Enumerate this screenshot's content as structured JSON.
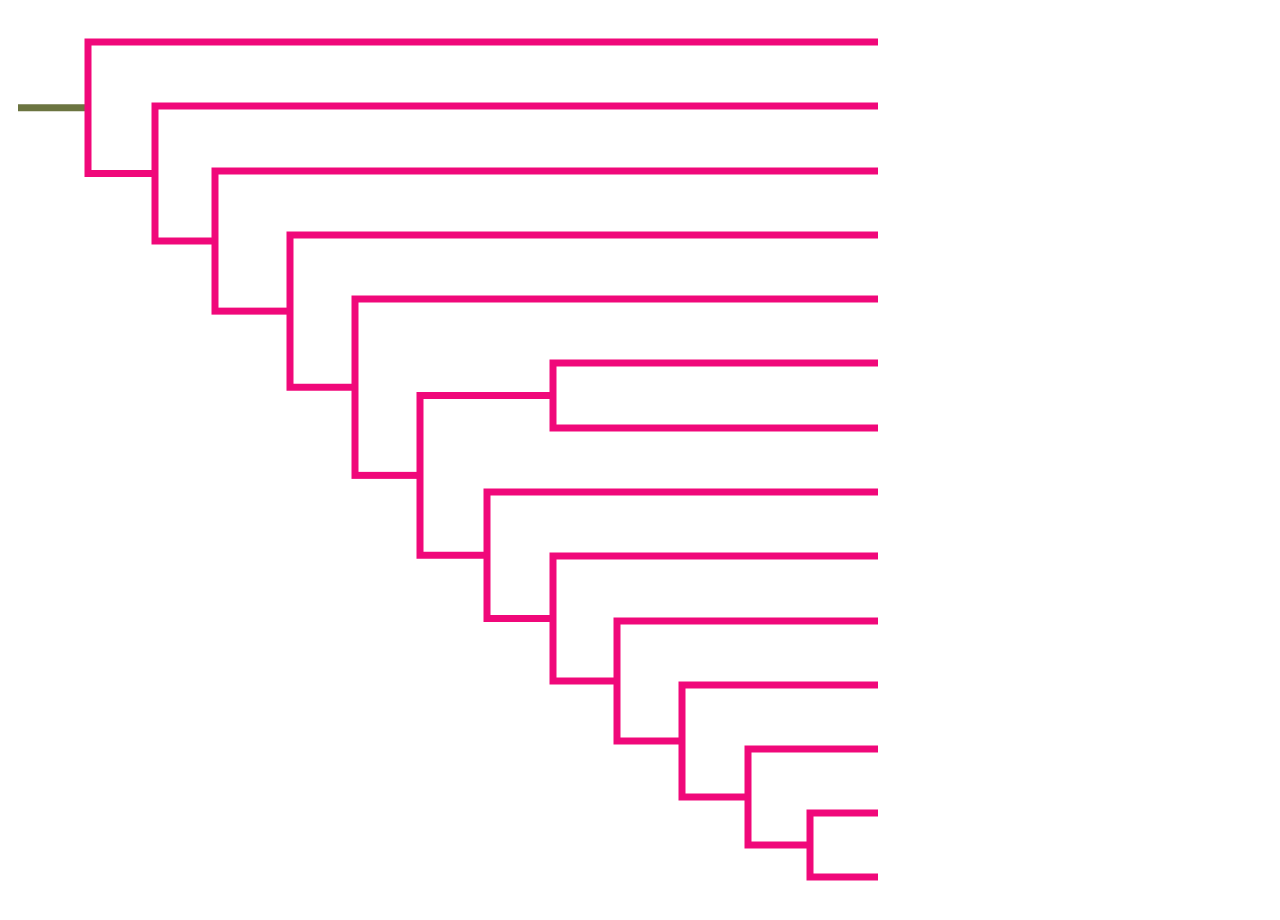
{
  "chart_data": {
    "type": "dendrogram",
    "color": "#f0087a",
    "root_color": "#6b7440"
  }
}
